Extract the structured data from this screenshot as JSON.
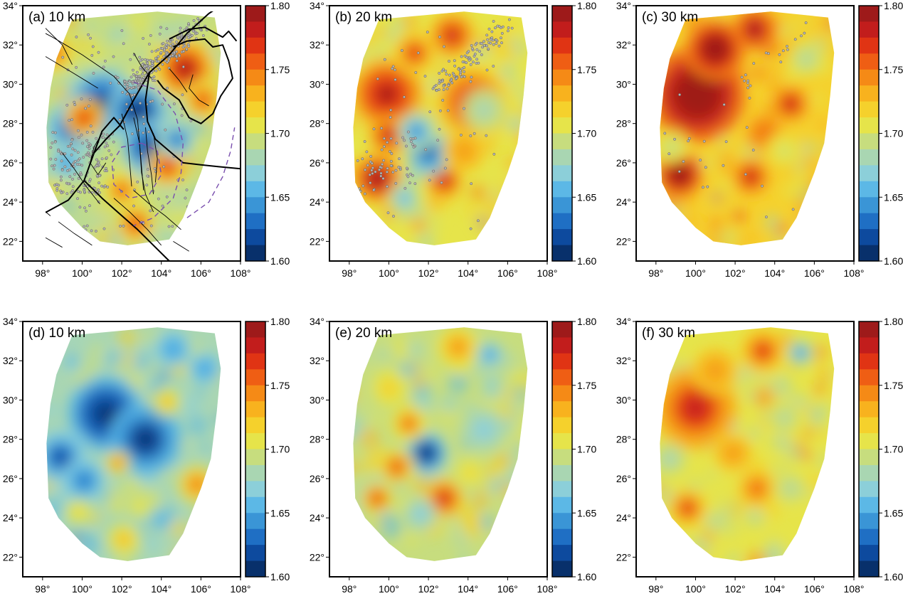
{
  "figure": {
    "panels": [
      {
        "id": "a",
        "label": "(a) 10 km",
        "variant": 0,
        "bias": 0.0,
        "seis": 1.0
      },
      {
        "id": "b",
        "label": "(b) 20 km",
        "variant": 1,
        "bias": 0.25,
        "seis": 0.45
      },
      {
        "id": "c",
        "label": "(c) 30 km",
        "variant": 2,
        "bias": 0.55,
        "seis": 0.08
      },
      {
        "id": "d",
        "label": "(d) 10 km",
        "variant": 3,
        "bias": -0.25,
        "seis": 0
      },
      {
        "id": "e",
        "label": "(e) 20 km",
        "variant": 4,
        "bias": 0.1,
        "seis": 0
      },
      {
        "id": "f",
        "label": "(f) 30 km",
        "variant": 5,
        "bias": 0.35,
        "seis": 0
      }
    ],
    "x_ticks": [
      "98°",
      "100°",
      "102°",
      "104°",
      "106°",
      "108°"
    ],
    "y_ticks": [
      "22°",
      "24°",
      "26°",
      "28°",
      "30°",
      "32°",
      "34°"
    ],
    "lon_range": [
      97,
      108
    ],
    "lat_range": [
      21,
      34
    ],
    "colorbar": {
      "min": 1.6,
      "max": 1.8,
      "labels": [
        "1.80",
        "1.75",
        "1.70",
        "1.65",
        "1.60"
      ],
      "colors": [
        "#08306b",
        "#0d4a9e",
        "#1f6fc4",
        "#3a95d6",
        "#5cb8e6",
        "#8ccfd9",
        "#a9d6b2",
        "#c7dd7e",
        "#e6e44a",
        "#f5d12c",
        "#f8b21e",
        "#f58a16",
        "#ef5e14",
        "#e03414",
        "#c21d1c",
        "#9e1a1a"
      ]
    }
  }
}
